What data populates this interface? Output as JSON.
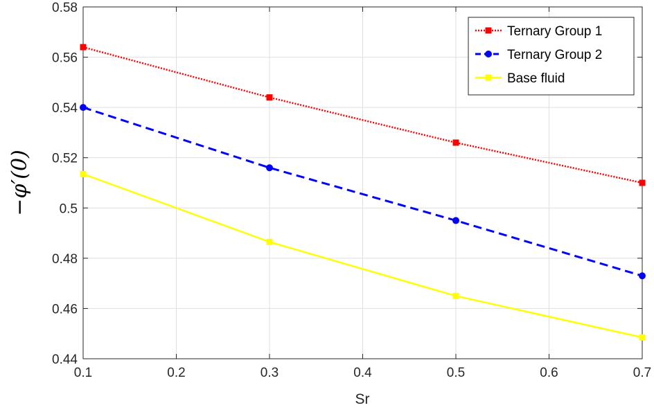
{
  "chart_data": {
    "type": "line",
    "xlabel": "Sr",
    "ylabel": "−φ′(0)",
    "xlim": [
      0.1,
      0.7
    ],
    "ylim": [
      0.44,
      0.58
    ],
    "xticks": [
      "0.1",
      "0.2",
      "0.3",
      "0.4",
      "0.5",
      "0.6",
      "0.7"
    ],
    "yticks": [
      "0.44",
      "0.46",
      "0.48",
      "0.5",
      "0.52",
      "0.54",
      "0.56",
      "0.58"
    ],
    "grid": true,
    "legend_position": "top-right",
    "x": [
      0.1,
      0.3,
      0.5,
      0.7
    ],
    "series": [
      {
        "name": "Ternary Group 1",
        "values": [
          0.564,
          0.544,
          0.526,
          0.51
        ],
        "color": "#ff0000",
        "line_style": "dotted",
        "marker": "square"
      },
      {
        "name": "Ternary Group 2",
        "values": [
          0.54,
          0.516,
          0.495,
          0.473
        ],
        "color": "#0000ff",
        "line_style": "dashed",
        "marker": "circle"
      },
      {
        "name": "Base fluid",
        "values": [
          0.5135,
          0.4865,
          0.465,
          0.4485
        ],
        "color": "#ffff00",
        "line_style": "solid",
        "marker": "square"
      }
    ]
  }
}
